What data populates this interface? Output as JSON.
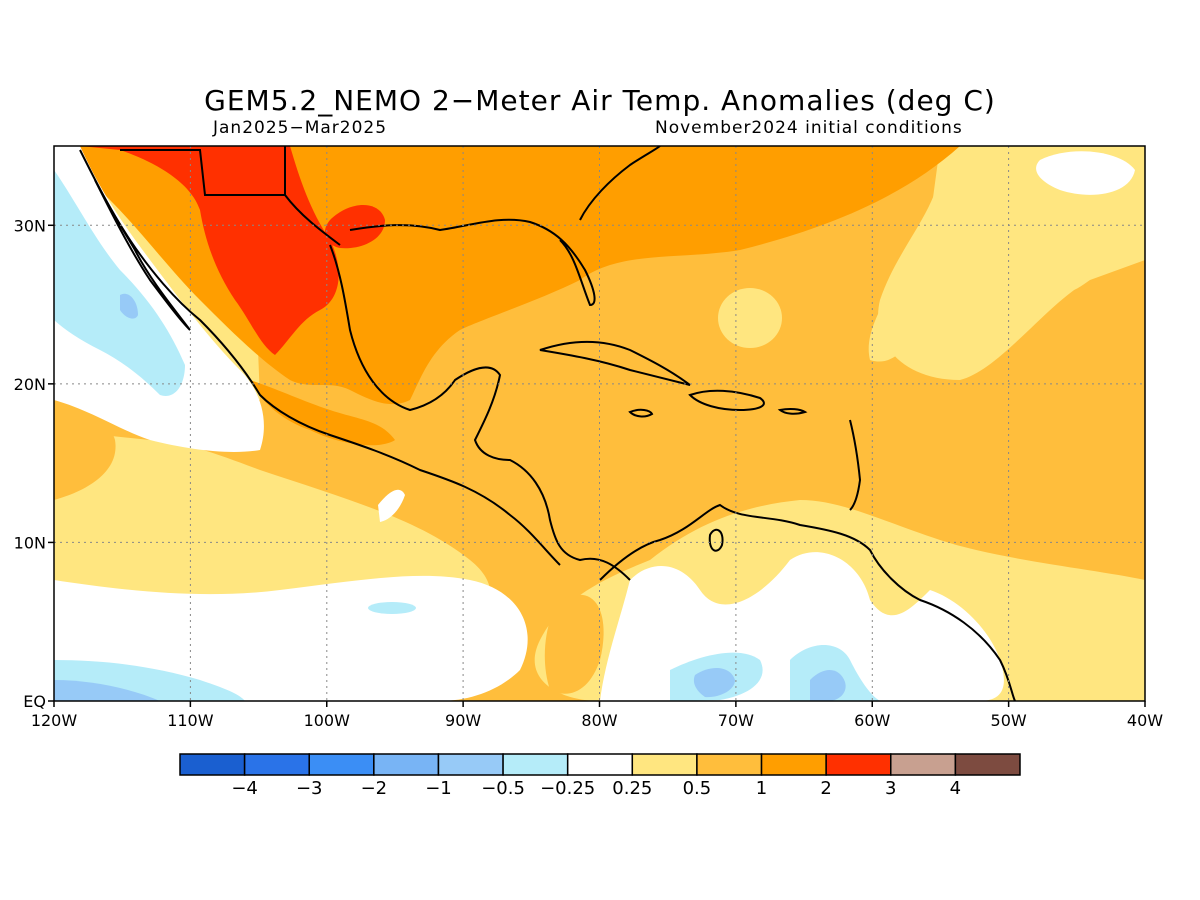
{
  "title": "GEM5.2_NEMO 2−Meter Air Temp. Anomalies (deg C)",
  "subtitle_left": "Jan2025−Mar2025",
  "subtitle_right": "November2024 initial conditions",
  "map": {
    "region": "Caribbean / Gulf of Mexico / Central America",
    "lon_range": [
      -120,
      -40
    ],
    "lat_range": [
      0,
      35
    ],
    "lon_ticks": [
      {
        "lon": -120,
        "label": "120W"
      },
      {
        "lon": -110,
        "label": "110W"
      },
      {
        "lon": -100,
        "label": "100W"
      },
      {
        "lon": -90,
        "label": "90W"
      },
      {
        "lon": -80,
        "label": "80W"
      },
      {
        "lon": -70,
        "label": "70W"
      },
      {
        "lon": -60,
        "label": "60W"
      },
      {
        "lon": -50,
        "label": "50W"
      },
      {
        "lon": -40,
        "label": "40W"
      }
    ],
    "lat_ticks": [
      {
        "lat": 0,
        "label": "EQ"
      },
      {
        "lat": 10,
        "label": "10N"
      },
      {
        "lat": 20,
        "label": "20N"
      },
      {
        "lat": 30,
        "label": "30N"
      }
    ],
    "grid": true
  },
  "colorbar": {
    "colors": [
      "#1a5fd0",
      "#2a73e8",
      "#3b8ef5",
      "#78b4f5",
      "#97caf7",
      "#b5ecf9",
      "#ffffff",
      "#ffe680",
      "#ffbe3c",
      "#ff9e00",
      "#ff3000",
      "#c8a090",
      "#7d4b40"
    ],
    "labels": [
      "−4",
      "−3",
      "−2",
      "−1",
      "−0.5",
      "−0.25",
      "0.25",
      "0.5",
      "1",
      "2",
      "3",
      "4"
    ]
  }
}
